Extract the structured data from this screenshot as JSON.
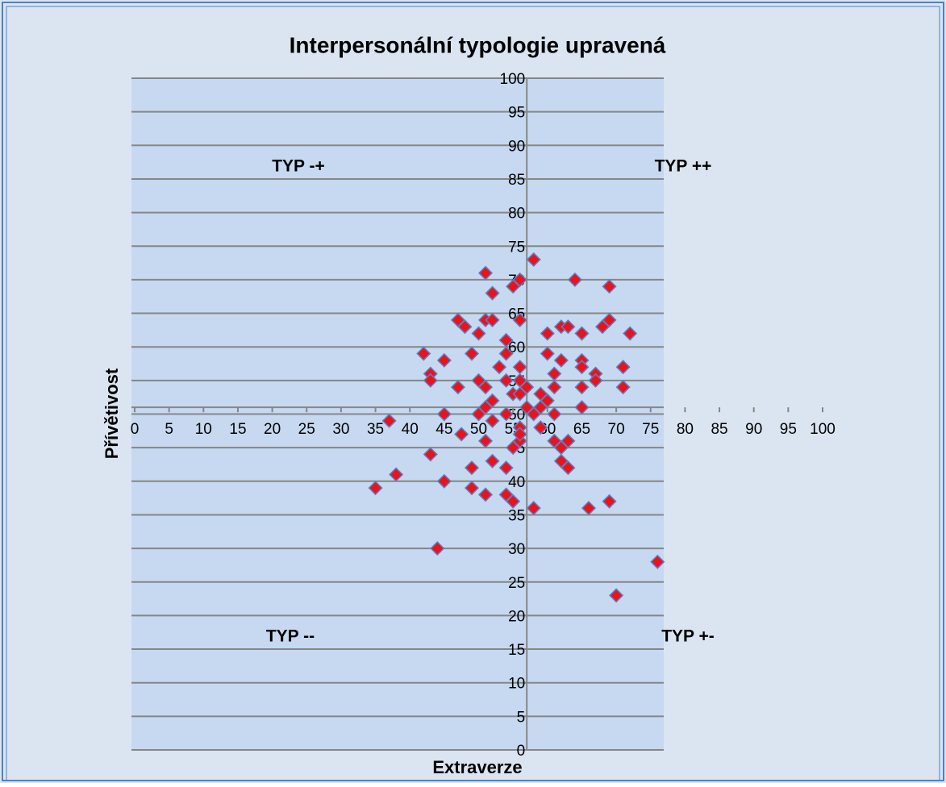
{
  "chart_data": {
    "type": "scatter",
    "title": "Interpersonální typologie upravená",
    "x_label": "Extraverze",
    "y_label": "Přívětivost",
    "annotations": [
      "TYP -+",
      "TYP ++",
      "TYP --",
      "TYP +-"
    ],
    "xlim": [
      0,
      100
    ],
    "ylim": [
      0,
      100
    ],
    "xticks": [
      0,
      5,
      10,
      15,
      20,
      25,
      30,
      35,
      40,
      45,
      50,
      55,
      60,
      65,
      70,
      75,
      80,
      85,
      90,
      95,
      100
    ],
    "yticks": [
      0,
      5,
      10,
      15,
      20,
      25,
      30,
      35,
      40,
      45,
      50,
      55,
      60,
      65,
      70,
      75,
      80,
      85,
      90,
      95,
      100
    ],
    "yaxis_at_x": 57,
    "xaxis_at_y": 51,
    "grid": true,
    "series": [
      {
        "name": "Přívětivost",
        "color": "#e8141c",
        "x": [
          35,
          37,
          38,
          42,
          43,
          43,
          43,
          44,
          45,
          45,
          45,
          47,
          47,
          47.5,
          48,
          49,
          49,
          49,
          50,
          50,
          50,
          51,
          51,
          51,
          51,
          51,
          52,
          52,
          52,
          52,
          52,
          51,
          53,
          54,
          54,
          54,
          54,
          54,
          54,
          55,
          55,
          55,
          55,
          56,
          56,
          56,
          56,
          56,
          56,
          56,
          57,
          58,
          58,
          58,
          59,
          59,
          60,
          60,
          60,
          61,
          61,
          61,
          61,
          62,
          62,
          62,
          62,
          63,
          63,
          63,
          64,
          65,
          65,
          65,
          65,
          65,
          66,
          67,
          67,
          68,
          69,
          69,
          69,
          70,
          71,
          71,
          72,
          76,
          57,
          59,
          56
        ],
        "y": [
          39,
          49,
          41,
          59,
          56,
          55,
          44,
          30,
          58,
          50,
          40,
          64,
          54,
          47,
          63,
          59,
          42,
          39,
          62,
          55,
          50,
          71,
          64,
          54,
          51,
          46,
          68,
          64,
          52,
          49,
          43,
          38,
          57,
          61,
          59,
          55,
          50,
          42,
          38,
          69,
          53,
          45,
          37,
          70,
          64,
          57,
          55,
          53,
          48,
          46,
          51,
          73,
          50,
          36,
          53,
          48,
          62,
          59,
          52,
          56,
          54,
          50,
          46,
          63,
          58,
          45,
          43,
          63,
          46,
          42,
          70,
          62,
          58,
          57,
          54,
          51,
          36,
          56,
          55,
          63,
          64,
          69,
          37,
          23,
          57,
          54,
          62,
          28,
          54,
          51,
          47
        ]
      }
    ]
  }
}
